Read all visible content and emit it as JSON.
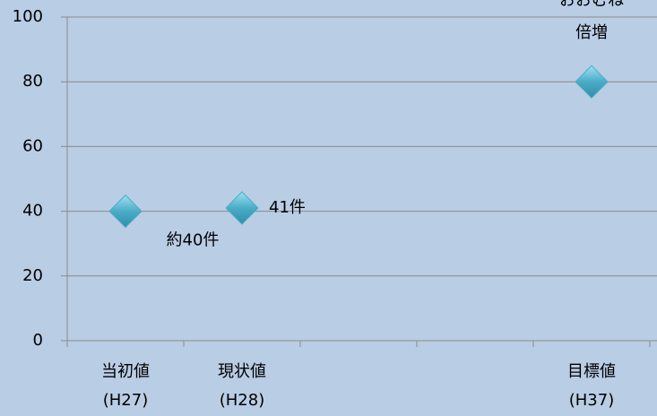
{
  "chart_data": {
    "type": "scatter",
    "categories": [
      "当初値\n(H27)",
      "現状値\n(H28)",
      null,
      null,
      "目標値\n(H37)"
    ],
    "series": [
      {
        "color": "#4bacc6",
        "values": [
          40,
          41,
          null,
          null,
          80
        ],
        "value_labels": [
          "約40件",
          "41件",
          null,
          null,
          "おおむね\n倍増"
        ]
      }
    ],
    "ylim": [
      0,
      100
    ],
    "yticks": [
      0,
      20,
      40,
      60,
      80,
      100
    ],
    "grid": true
  }
}
